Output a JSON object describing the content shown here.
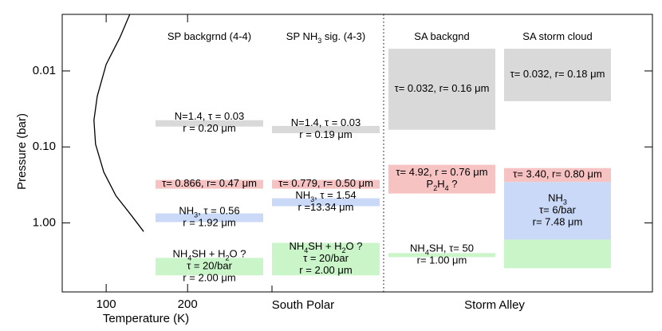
{
  "chart_data": {
    "type": "line",
    "xlabel": "Temperature (K)",
    "ylabel": "Pressure (bar)",
    "x": [
      129,
      117,
      100,
      89,
      85,
      87,
      97,
      112,
      131,
      146
    ],
    "values": [
      0.0018,
      0.0036,
      0.0082,
      0.0216,
      0.0445,
      0.092,
      0.214,
      0.44,
      0.8,
      1.3
    ],
    "color": "#000000",
    "xlim": [
      46,
      771
    ],
    "xticks": [
      100,
      200
    ],
    "ylim": [
      0.0018,
      8.1
    ],
    "yticks": [
      0.01,
      {
        "value": 0.1,
        "label": "0.10"
      },
      {
        "value": 1,
        "label": "1.00"
      }
    ],
    "ylog": true,
    "yinverted": true,
    "regions": [
      "South Polar",
      "Storm Alley"
    ],
    "columns": [
      {
        "title": [
          "SP backgrnd (4-4)"
        ],
        "layers": [
          {
            "top": 0.0445,
            "bottom": 0.054,
            "color": "#d9d9d9",
            "labels": [
              [
                "N=1.4, τ = 0.03"
              ],
              [
                "r = 0.20 μm"
              ]
            ]
          },
          {
            "top": 0.272,
            "bottom": 0.354,
            "color": "#f7c2c2",
            "labels": [
              [
                "τ= 0.866, r= 0.47 μm"
              ]
            ]
          },
          {
            "top": 0.75,
            "bottom": 0.976,
            "color": "#c9d9f7",
            "labels": [
              [
                "NH",
                "3",
                ", τ = 0.56"
              ],
              [
                "r = 1.92 μm"
              ]
            ]
          },
          {
            "top": 2.89,
            "bottom": 4.9,
            "color": "#c9f5c9",
            "labels": [
              [
                "NH",
                "4",
                "SH + H",
                "2",
                "O ?"
              ],
              [
                "τ =   20/bar"
              ],
              [
                "r = 2.00 μm"
              ]
            ]
          }
        ]
      },
      {
        "title": [
          "SP NH",
          "3",
          " sig. (4-3)"
        ],
        "layers": [
          {
            "top": 0.053,
            "bottom": 0.066,
            "color": "#d9d9d9",
            "labels": [
              [
                "N=1.4, τ = 0.03"
              ],
              [
                "r = 0.19 μm"
              ]
            ]
          },
          {
            "top": 0.272,
            "bottom": 0.354,
            "color": "#f7c2c2",
            "labels": [
              [
                "τ= 0.779, r= 0.50 μm"
              ]
            ]
          },
          {
            "top": 0.474,
            "bottom": 0.603,
            "color": "#c9d9f7",
            "labels": [
              [
                "NH",
                "3",
                ", τ = 1.54"
              ],
              [
                "r =13.34 μm"
              ]
            ]
          },
          {
            "top": 1.83,
            "bottom": 4.9,
            "color": "#c9f5c9",
            "labels": [
              [
                "NH",
                "4",
                "SH + H",
                "2",
                "O ?"
              ],
              [
                "τ =   20/bar"
              ],
              [
                "r = 2.00 μm"
              ]
            ]
          }
        ]
      },
      {
        "title": [
          "SA backgnd"
        ],
        "layers": [
          {
            "top": 0.0051,
            "bottom": 0.0595,
            "color": "#d9d9d9",
            "labels": [
              [
                "τ= 0.032, r= 0.16 μm"
              ]
            ]
          },
          {
            "top": 0.172,
            "bottom": 0.41,
            "color": "#f7c2c2",
            "labels": [
              [
                "τ= 4.92, r = 0.76 μm"
              ],
              [
                "P",
                "2",
                "H",
                "4",
                " ?"
              ]
            ]
          },
          {
            "top": 2.5,
            "bottom": 2.82,
            "color": "#c9f5c9",
            "labels": [
              [
                "NH",
                "4",
                "SH, τ=   50"
              ],
              [
                "r= 1.00 μm"
              ]
            ]
          }
        ]
      },
      {
        "title": [
          "SA storm cloud"
        ],
        "layers": [
          {
            "top": 0.0051,
            "bottom": 0.025,
            "color": "#d9d9d9",
            "labels": [
              [
                "τ= 0.032, r= 0.18 μm"
              ]
            ]
          },
          {
            "top": 0.19,
            "bottom": 0.29,
            "color": "#f7c2c2",
            "labels": [
              [
                "τ= 3.40, r= 0.80 μm"
              ]
            ]
          },
          {
            "top": 0.29,
            "bottom": 1.66,
            "color": "#c9d9f7",
            "labels": [
              [
                "NH",
                "3"
              ],
              [
                "τ=    6/bar"
              ],
              [
                "r= 7.48 μm"
              ]
            ]
          },
          {
            "top": 1.66,
            "bottom": 3.95,
            "color": "#c9f5c9",
            "labels": []
          }
        ]
      }
    ]
  }
}
